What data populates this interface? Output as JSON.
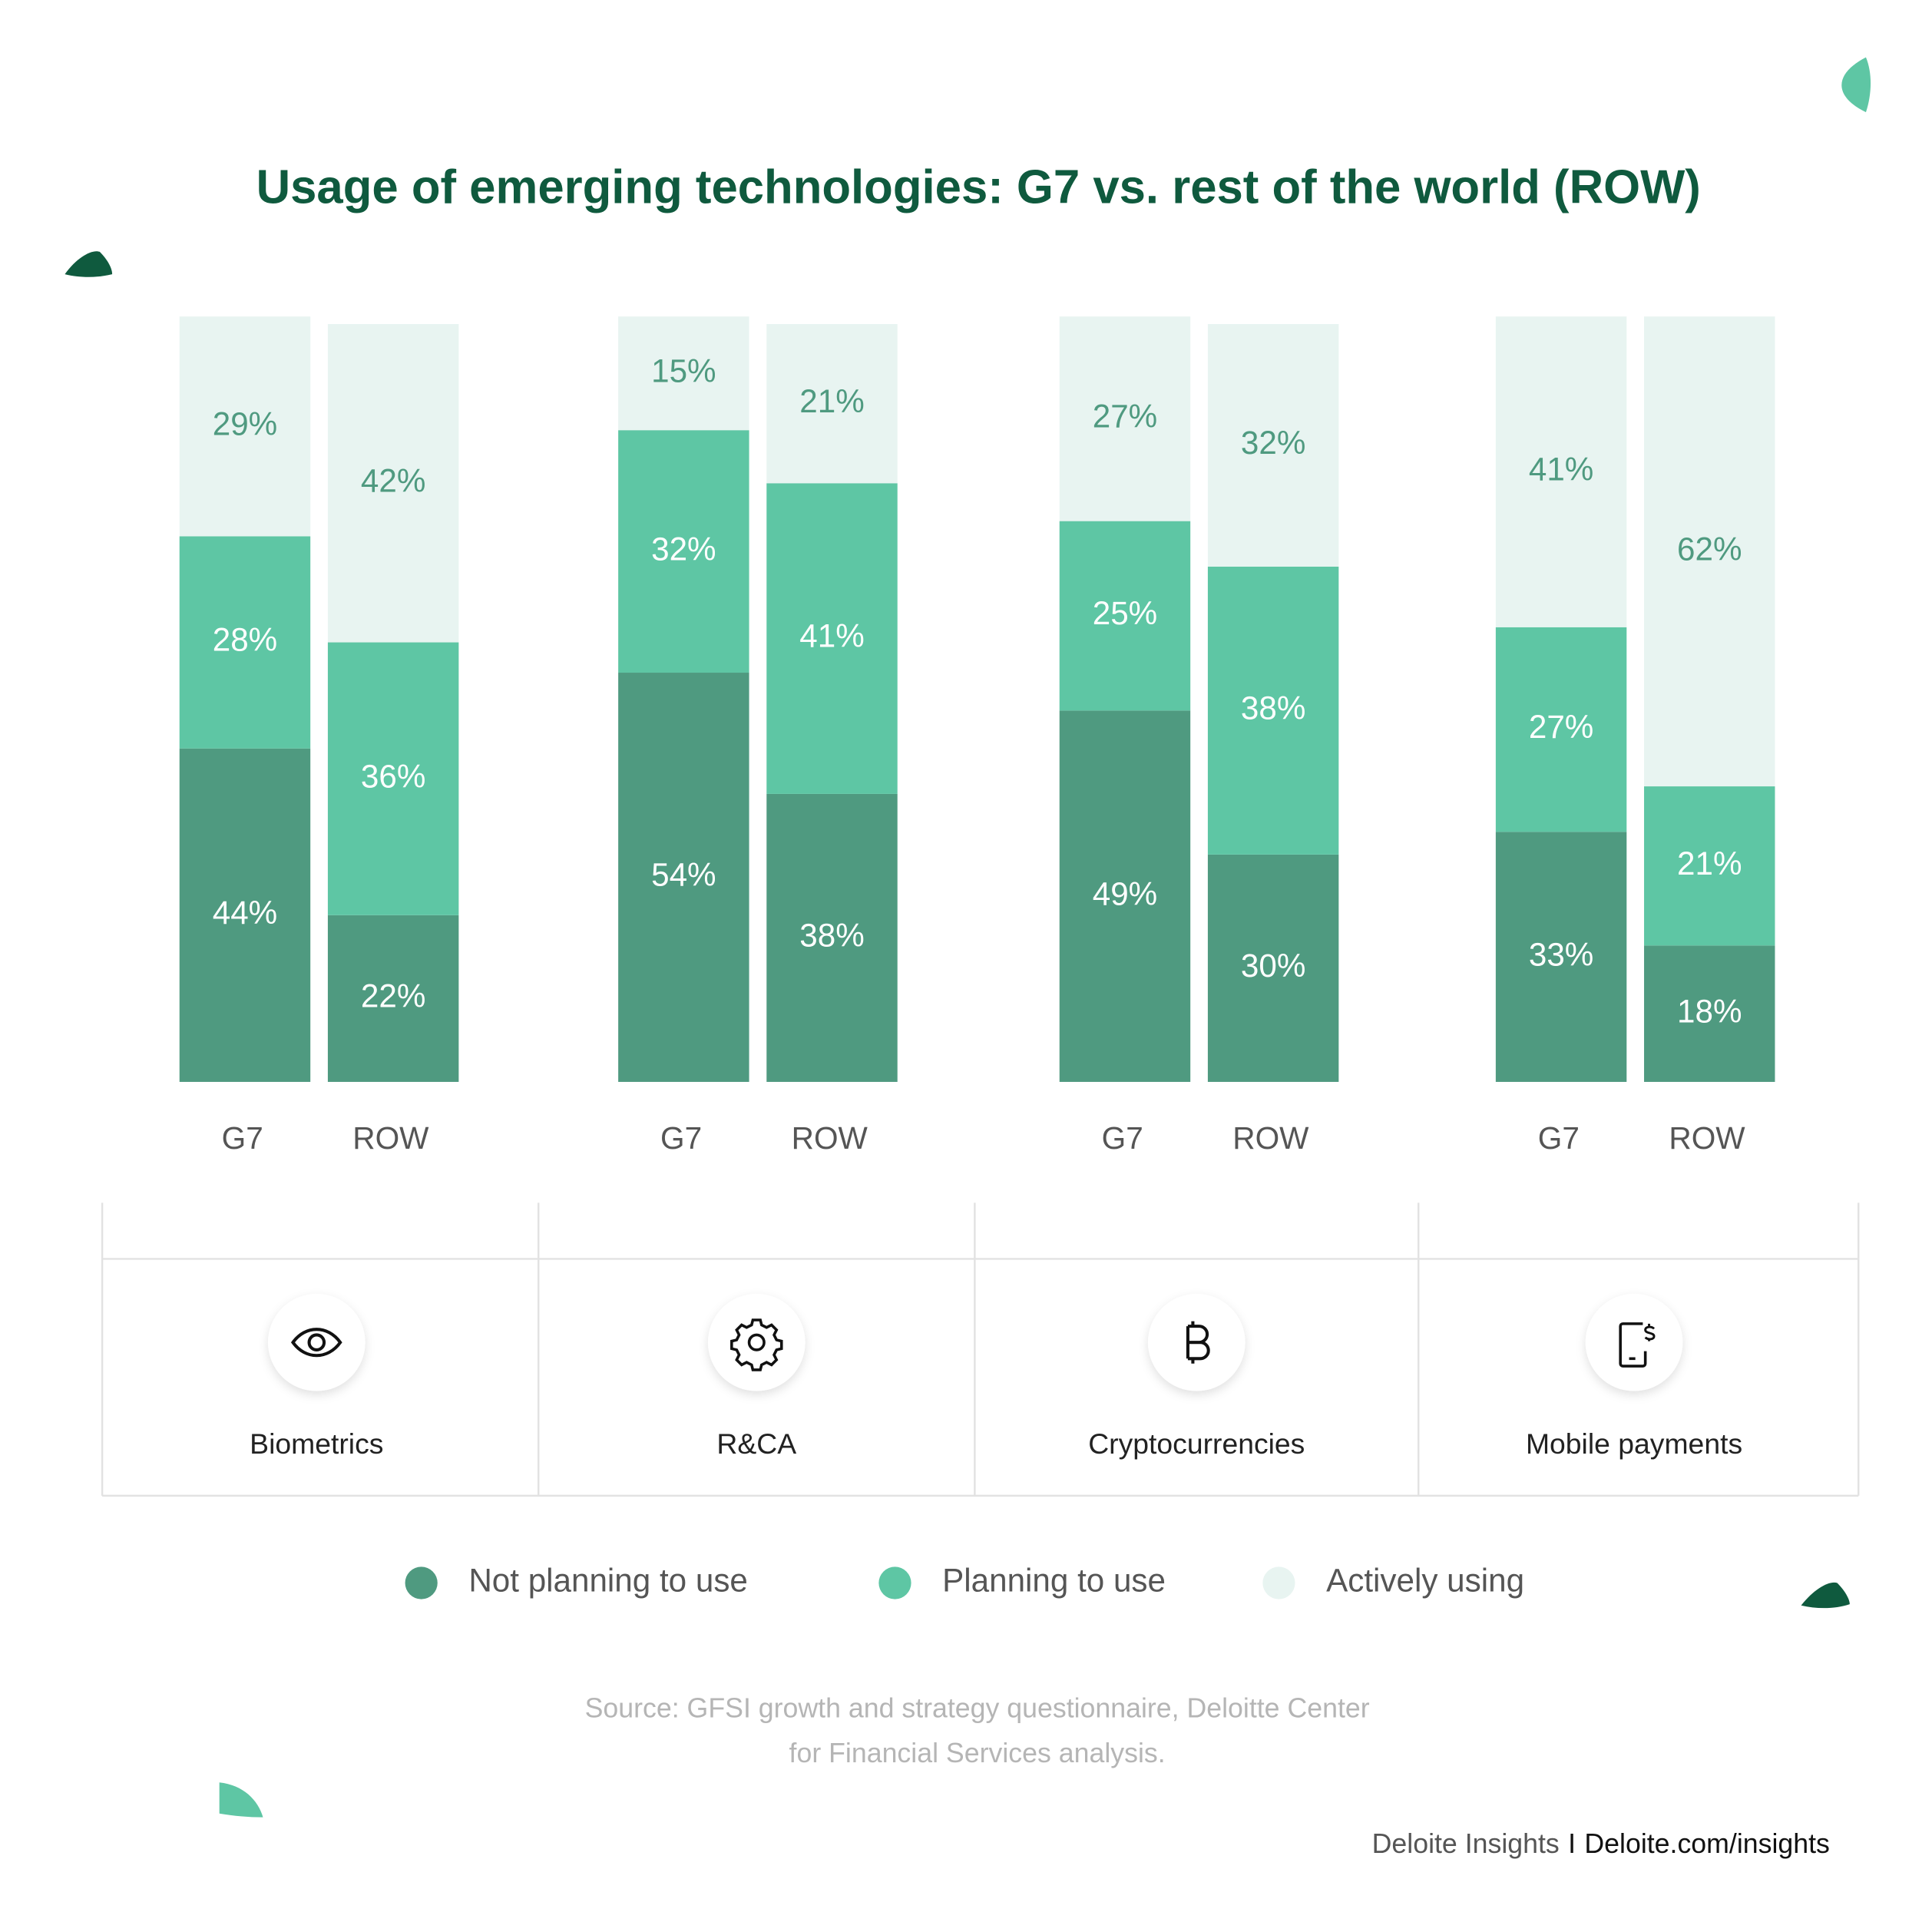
{
  "chart_data": {
    "type": "stacked_bar",
    "title": "Usage of emerging technologies: G7 vs. rest of the world (ROW)",
    "groups": [
      "Biometrics",
      "R&CA",
      "Cryptocurrencies",
      "Mobile payments"
    ],
    "categories": [
      "G7",
      "ROW",
      "G7",
      "ROW",
      "G7",
      "ROW",
      "G7",
      "ROW"
    ],
    "series": [
      {
        "name": "Not planning to use",
        "color": "#4f9a80",
        "values": [
          44,
          22,
          54,
          38,
          49,
          30,
          33,
          18
        ],
        "value_labels": [
          "44%",
          "22%",
          "54%",
          "38%",
          "49%",
          "30%",
          "33%",
          "18%"
        ]
      },
      {
        "name": "Planning to use",
        "color": "#5ec6a4",
        "values": [
          28,
          36,
          32,
          41,
          25,
          38,
          27,
          21
        ],
        "value_labels": [
          "28%",
          "36%",
          "32%",
          "41%",
          "25%",
          "38%",
          "27%",
          "21%"
        ]
      },
      {
        "name": "Actively using",
        "color": "#e8f4f1",
        "values": [
          29,
          42,
          15,
          21,
          27,
          32,
          41,
          62
        ],
        "value_labels": [
          "29%",
          "42%",
          "15%",
          "21%",
          "27%",
          "32%",
          "41%",
          "62%"
        ]
      }
    ],
    "ylim": [
      0,
      100
    ]
  },
  "source": [
    "Source: GFSI growth and strategy questionnaire, Deloitte Center",
    "for Financial Services analysis."
  ],
  "footer": {
    "left": "Deloite Insights",
    "separator": "I",
    "right": "Deloite.com/insights"
  }
}
